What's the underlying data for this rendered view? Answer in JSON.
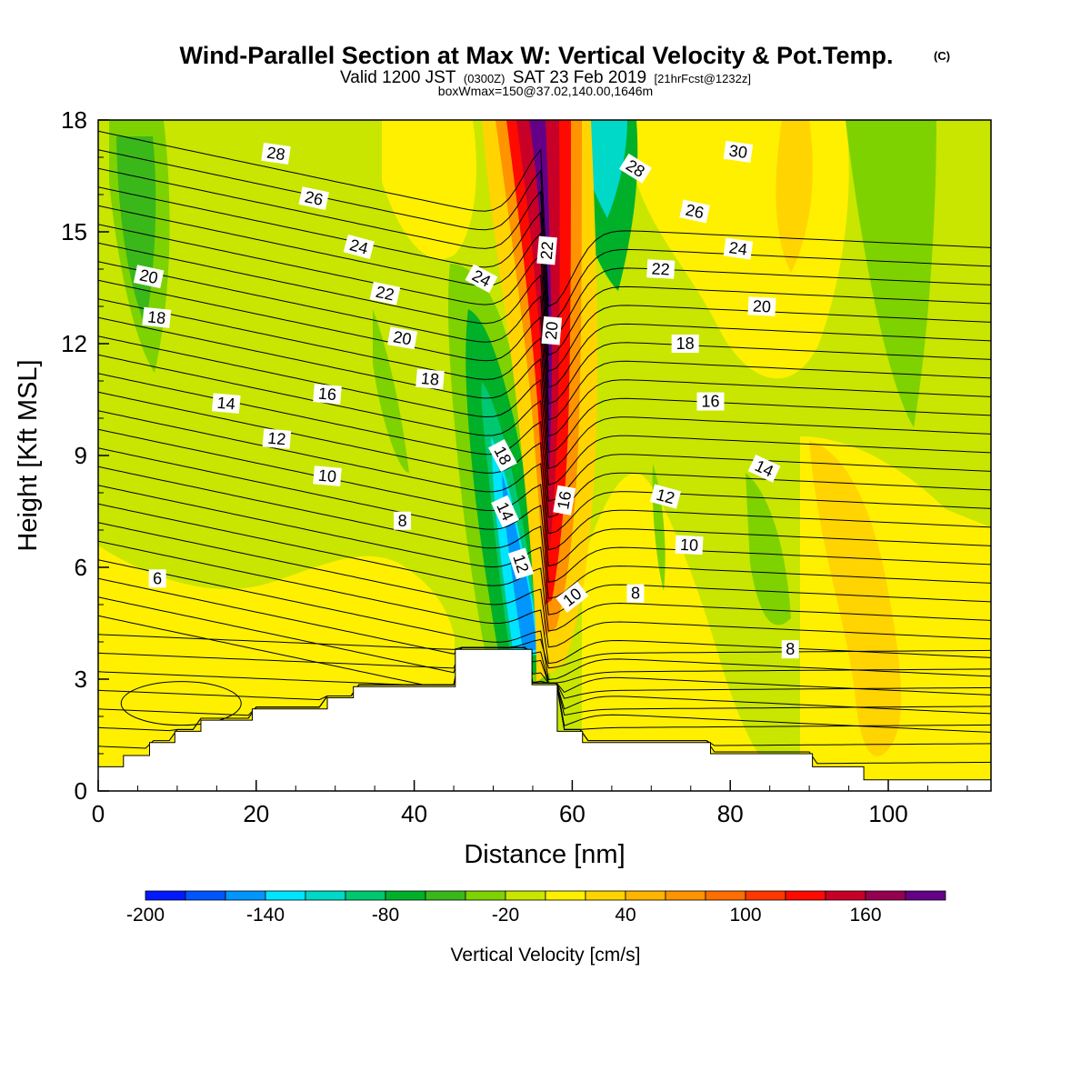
{
  "title": {
    "main": "Wind-Parallel Section at Max W: Vertical Velocity & Pot.Temp.",
    "copyright": "(C)",
    "valid_a": "Valid 1200 JST",
    "valid_z": "(0300Z)",
    "valid_b": "SAT 23 Feb 2019",
    "valid_c": "[21hrFcst@1232z]",
    "box": "boxWmax=150@37.02,140.00,1646m"
  },
  "chart_data": {
    "type": "contour",
    "xlabel": "Distance [nm]",
    "ylabel": "Height [Kft MSL]",
    "xlim": [
      0,
      113
    ],
    "ylim": [
      0,
      18
    ],
    "x_ticks": [
      "0",
      "20",
      "40",
      "60",
      "80",
      "100"
    ],
    "x_tick_values": [
      0,
      20,
      40,
      60,
      80,
      100
    ],
    "y_ticks": [
      "0",
      "3",
      "6",
      "9",
      "12",
      "15",
      "18"
    ],
    "y_tick_values": [
      0,
      3,
      6,
      9,
      12,
      15,
      18
    ],
    "filled_field": "Vertical Velocity",
    "colorbar": {
      "title": "Vertical Velocity [cm/s]",
      "levels": [
        -200,
        -180,
        -160,
        -140,
        -120,
        -100,
        -80,
        -60,
        -40,
        -20,
        0,
        20,
        40,
        60,
        80,
        100,
        120,
        140,
        160,
        180,
        200
      ],
      "labels": [
        "-200",
        "-140",
        "-80",
        "-20",
        "40",
        "100",
        "160"
      ],
      "label_values": [
        -200,
        -140,
        -80,
        -20,
        40,
        100,
        160
      ],
      "colors": [
        "#0019ff",
        "#0055ff",
        "#0095ff",
        "#00e5ff",
        "#00d8c8",
        "#00c870",
        "#00b028",
        "#3ab81a",
        "#7ed200",
        "#c8e600",
        "#fff000",
        "#ffd400",
        "#ffb400",
        "#ff9400",
        "#ff6e00",
        "#ff3800",
        "#ff0a00",
        "#c80028",
        "#960050",
        "#640088"
      ]
    },
    "terrain_kft": [
      {
        "x": 0,
        "z": 0.65
      },
      {
        "x": 3.2,
        "z": 0.95
      },
      {
        "x": 6.5,
        "z": 1.3
      },
      {
        "x": 9.7,
        "z": 1.6
      },
      {
        "x": 13,
        "z": 1.9
      },
      {
        "x": 19.5,
        "z": 2.2
      },
      {
        "x": 29,
        "z": 2.5
      },
      {
        "x": 32.3,
        "z": 2.8
      },
      {
        "x": 45.2,
        "z": 3.8
      },
      {
        "x": 54.9,
        "z": 2.85
      },
      {
        "x": 58.1,
        "z": 1.6
      },
      {
        "x": 61.3,
        "z": 1.3
      },
      {
        "x": 77.5,
        "z": 1.0
      },
      {
        "x": 90.4,
        "z": 0.65
      },
      {
        "x": 96.9,
        "z": 0.3
      },
      {
        "x": 113,
        "z": 0.3
      }
    ],
    "potential_temperature_labels": [
      {
        "text": "28",
        "x": 22.5,
        "y": 17.1,
        "rot": 8
      },
      {
        "text": "26",
        "x": 27.3,
        "y": 15.9,
        "rot": 12
      },
      {
        "text": "24",
        "x": 33.0,
        "y": 14.6,
        "rot": 15
      },
      {
        "text": "22",
        "x": 36.3,
        "y": 13.35,
        "rot": 12
      },
      {
        "text": "20",
        "x": 38.5,
        "y": 12.15,
        "rot": 10
      },
      {
        "text": "18",
        "x": 42.0,
        "y": 11.05,
        "rot": 5
      },
      {
        "text": "16",
        "x": 29.0,
        "y": 10.65,
        "rot": 5
      },
      {
        "text": "14",
        "x": 16.2,
        "y": 10.4,
        "rot": 5
      },
      {
        "text": "12",
        "x": 22.6,
        "y": 9.45,
        "rot": 5
      },
      {
        "text": "10",
        "x": 29.0,
        "y": 8.45,
        "rot": 5
      },
      {
        "text": "8",
        "x": 38.5,
        "y": 7.25,
        "rot": 0
      },
      {
        "text": "6",
        "x": 7.5,
        "y": 5.7,
        "rot": 0
      },
      {
        "text": "20",
        "x": 6.4,
        "y": 13.8,
        "rot": 12
      },
      {
        "text": "18",
        "x": 7.4,
        "y": 12.7,
        "rot": 6
      },
      {
        "text": "24",
        "x": 48.5,
        "y": 13.75,
        "rot": 28
      },
      {
        "text": "22",
        "x": 56.8,
        "y": 14.5,
        "rot": -85
      },
      {
        "text": "20",
        "x": 57.4,
        "y": 12.35,
        "rot": -85
      },
      {
        "text": "18",
        "x": 51.2,
        "y": 9.0,
        "rot": 62
      },
      {
        "text": "14",
        "x": 51.5,
        "y": 7.5,
        "rot": 65
      },
      {
        "text": "12",
        "x": 53.5,
        "y": 6.1,
        "rot": 72
      },
      {
        "text": "16",
        "x": 59.0,
        "y": 7.8,
        "rot": -80
      },
      {
        "text": "10",
        "x": 60.0,
        "y": 5.2,
        "rot": -38
      },
      {
        "text": "28",
        "x": 68.0,
        "y": 16.7,
        "rot": 32
      },
      {
        "text": "30",
        "x": 81.0,
        "y": 17.15,
        "rot": 8
      },
      {
        "text": "26",
        "x": 75.5,
        "y": 15.55,
        "rot": 12
      },
      {
        "text": "24",
        "x": 81.0,
        "y": 14.55,
        "rot": 8
      },
      {
        "text": "22",
        "x": 71.2,
        "y": 14.0,
        "rot": 3
      },
      {
        "text": "20",
        "x": 84.0,
        "y": 13.0,
        "rot": 3
      },
      {
        "text": "18",
        "x": 74.3,
        "y": 12.0,
        "rot": 0
      },
      {
        "text": "16",
        "x": 77.5,
        "y": 10.45,
        "rot": 0
      },
      {
        "text": "14",
        "x": 84.3,
        "y": 8.65,
        "rot": 25
      },
      {
        "text": "12",
        "x": 71.8,
        "y": 7.9,
        "rot": 15
      },
      {
        "text": "10",
        "x": 74.8,
        "y": 6.6,
        "rot": 3
      },
      {
        "text": "8",
        "x": 68.0,
        "y": 5.3,
        "rot": 0
      },
      {
        "text": "8",
        "x": 87.6,
        "y": 3.8,
        "rot": 0
      }
    ]
  }
}
